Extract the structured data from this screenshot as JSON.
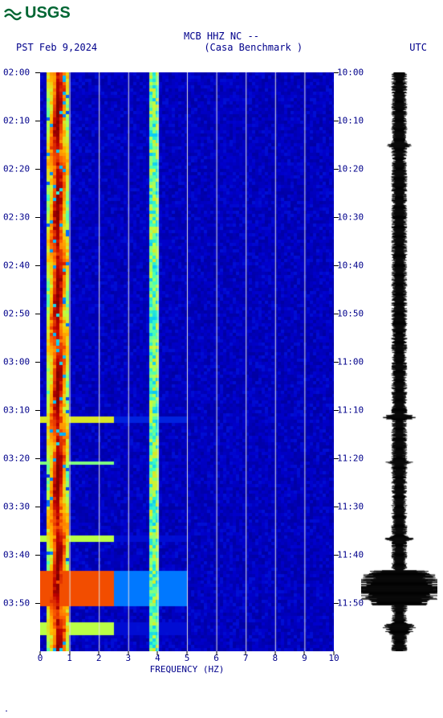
{
  "logo_text": "USGS",
  "header": {
    "line1": "MCB HHZ NC --",
    "left": "PST  Feb 9,2024",
    "center": "(Casa Benchmark )",
    "right": "UTC"
  },
  "spectrogram": {
    "type": "spectrogram",
    "background_color": "#000080",
    "grid_color": "#e0e0e0",
    "x_label": "FREQUENCY (HZ)",
    "xlim": [
      0,
      10
    ],
    "xtick_step": 1,
    "left_ticks": [
      "02:00",
      "02:10",
      "02:20",
      "02:30",
      "02:40",
      "02:50",
      "03:00",
      "03:10",
      "03:20",
      "03:30",
      "03:40",
      "03:50"
    ],
    "right_ticks": [
      "10:00",
      "10:10",
      "10:20",
      "10:30",
      "10:40",
      "10:50",
      "11:00",
      "11:10",
      "11:20",
      "11:30",
      "11:40",
      "11:50"
    ],
    "n_time_ticks": 12,
    "n_time_units": 120,
    "colormap": [
      "#000080",
      "#0000cd",
      "#0060ff",
      "#00c0ff",
      "#40ffc0",
      "#c0ff40",
      "#ffc000",
      "#ff6000",
      "#c00000",
      "#800000"
    ],
    "low_freq_band": {
      "start_hz": 0.2,
      "end_hz": 0.9,
      "intensity": "high"
    },
    "line_feature": {
      "hz": 3.8,
      "intensity": "medium"
    },
    "events": [
      {
        "time_frac": 0.59,
        "span": 0.01,
        "strength": 0.6
      },
      {
        "time_frac": 0.67,
        "span": 0.005,
        "strength": 0.4
      },
      {
        "time_frac": 0.8,
        "span": 0.01,
        "strength": 0.5
      },
      {
        "time_frac": 0.86,
        "span": 0.06,
        "strength": 1.0
      },
      {
        "time_frac": 0.95,
        "span": 0.02,
        "strength": 0.5
      }
    ]
  },
  "waveform": {
    "color": "#000000",
    "baseline_amp": 0.15,
    "events": [
      {
        "time_frac": 0.12,
        "span": 0.01,
        "amp": 0.25
      },
      {
        "time_frac": 0.59,
        "span": 0.01,
        "amp": 0.35
      },
      {
        "time_frac": 0.67,
        "span": 0.005,
        "amp": 0.3
      },
      {
        "time_frac": 0.8,
        "span": 0.01,
        "amp": 0.3
      },
      {
        "time_frac": 0.86,
        "span": 0.06,
        "amp": 1.0
      },
      {
        "time_frac": 0.95,
        "span": 0.02,
        "amp": 0.35
      }
    ]
  },
  "colors": {
    "text": "#00008b",
    "logo": "#006633"
  }
}
